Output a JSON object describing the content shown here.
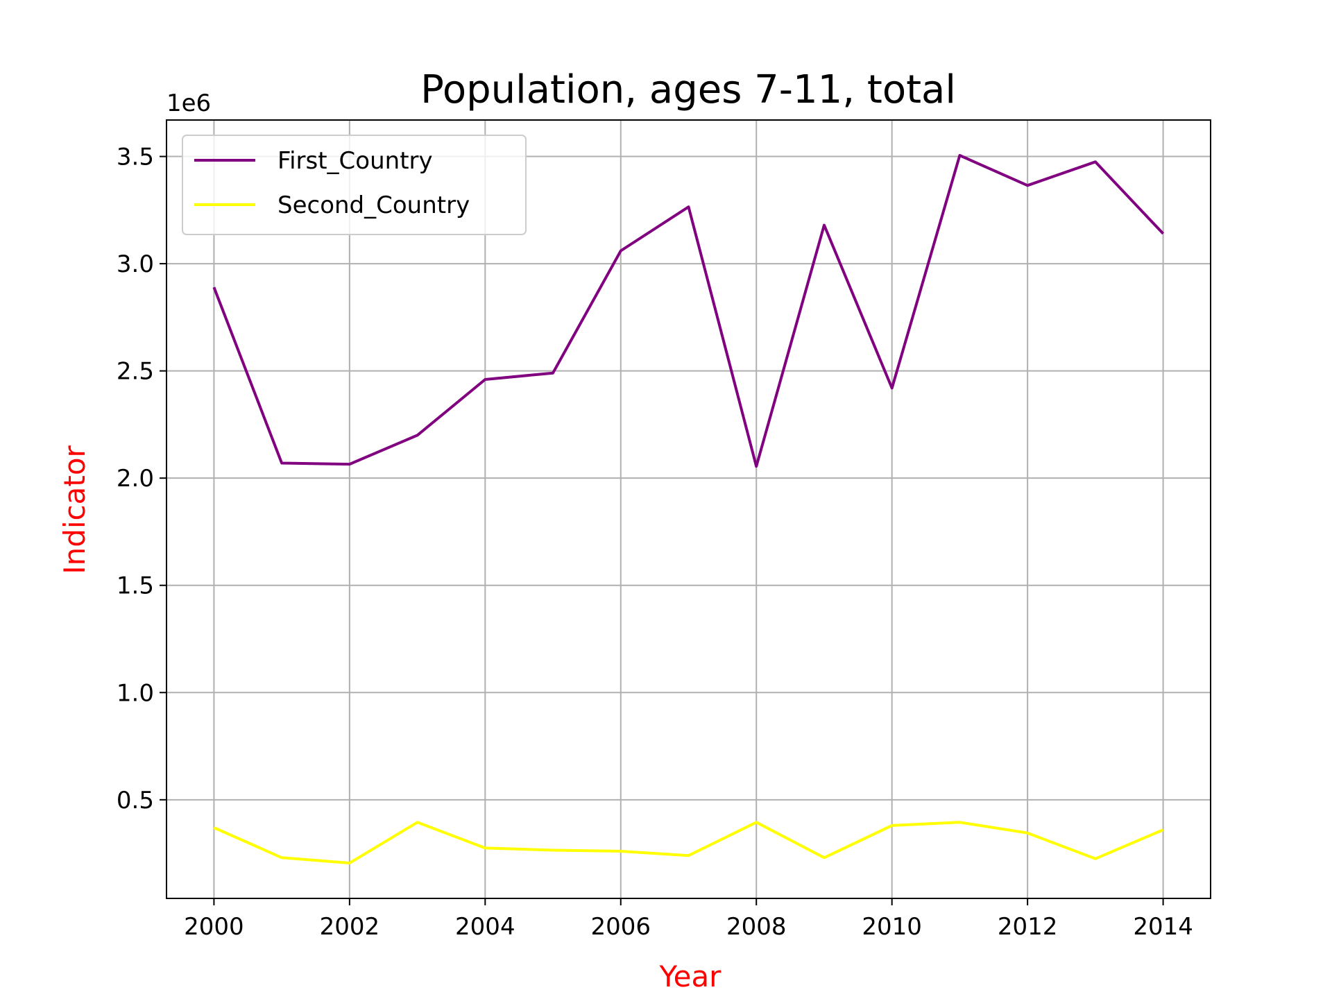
{
  "chart_data": {
    "type": "line",
    "title": "Population, ages 7-11, total",
    "xlabel": "Year",
    "ylabel": "Indicator",
    "axis_label_color": "#ff0000",
    "y_offset_label": "1e6",
    "x": [
      2000,
      2001,
      2002,
      2003,
      2004,
      2005,
      2006,
      2007,
      2008,
      2009,
      2010,
      2011,
      2012,
      2013,
      2014
    ],
    "xticks": [
      2000,
      2002,
      2004,
      2006,
      2008,
      2010,
      2012,
      2014
    ],
    "xtick_labels": [
      "2000",
      "2002",
      "2004",
      "2006",
      "2008",
      "2010",
      "2012",
      "2014"
    ],
    "yticks": [
      0.5,
      1.0,
      1.5,
      2.0,
      2.5,
      3.0,
      3.5
    ],
    "ytick_labels": [
      "0.5",
      "1.0",
      "1.5",
      "2.0",
      "2.5",
      "3.0",
      "3.5"
    ],
    "xlim": [
      1999.3,
      2014.7
    ],
    "ylim": [
      0.04,
      3.67
    ],
    "grid": true,
    "legend_position": "upper-left",
    "series": [
      {
        "name": "First_Country",
        "color": "#800080",
        "values": [
          2.89,
          2.07,
          2.065,
          2.2,
          2.46,
          2.49,
          3.06,
          3.265,
          2.055,
          3.18,
          2.42,
          3.505,
          3.365,
          3.475,
          3.14
        ]
      },
      {
        "name": "Second_Country",
        "color": "#ffff00",
        "values": [
          0.37,
          0.23,
          0.205,
          0.395,
          0.275,
          0.265,
          0.26,
          0.24,
          0.395,
          0.23,
          0.38,
          0.395,
          0.345,
          0.225,
          0.36
        ]
      }
    ]
  }
}
